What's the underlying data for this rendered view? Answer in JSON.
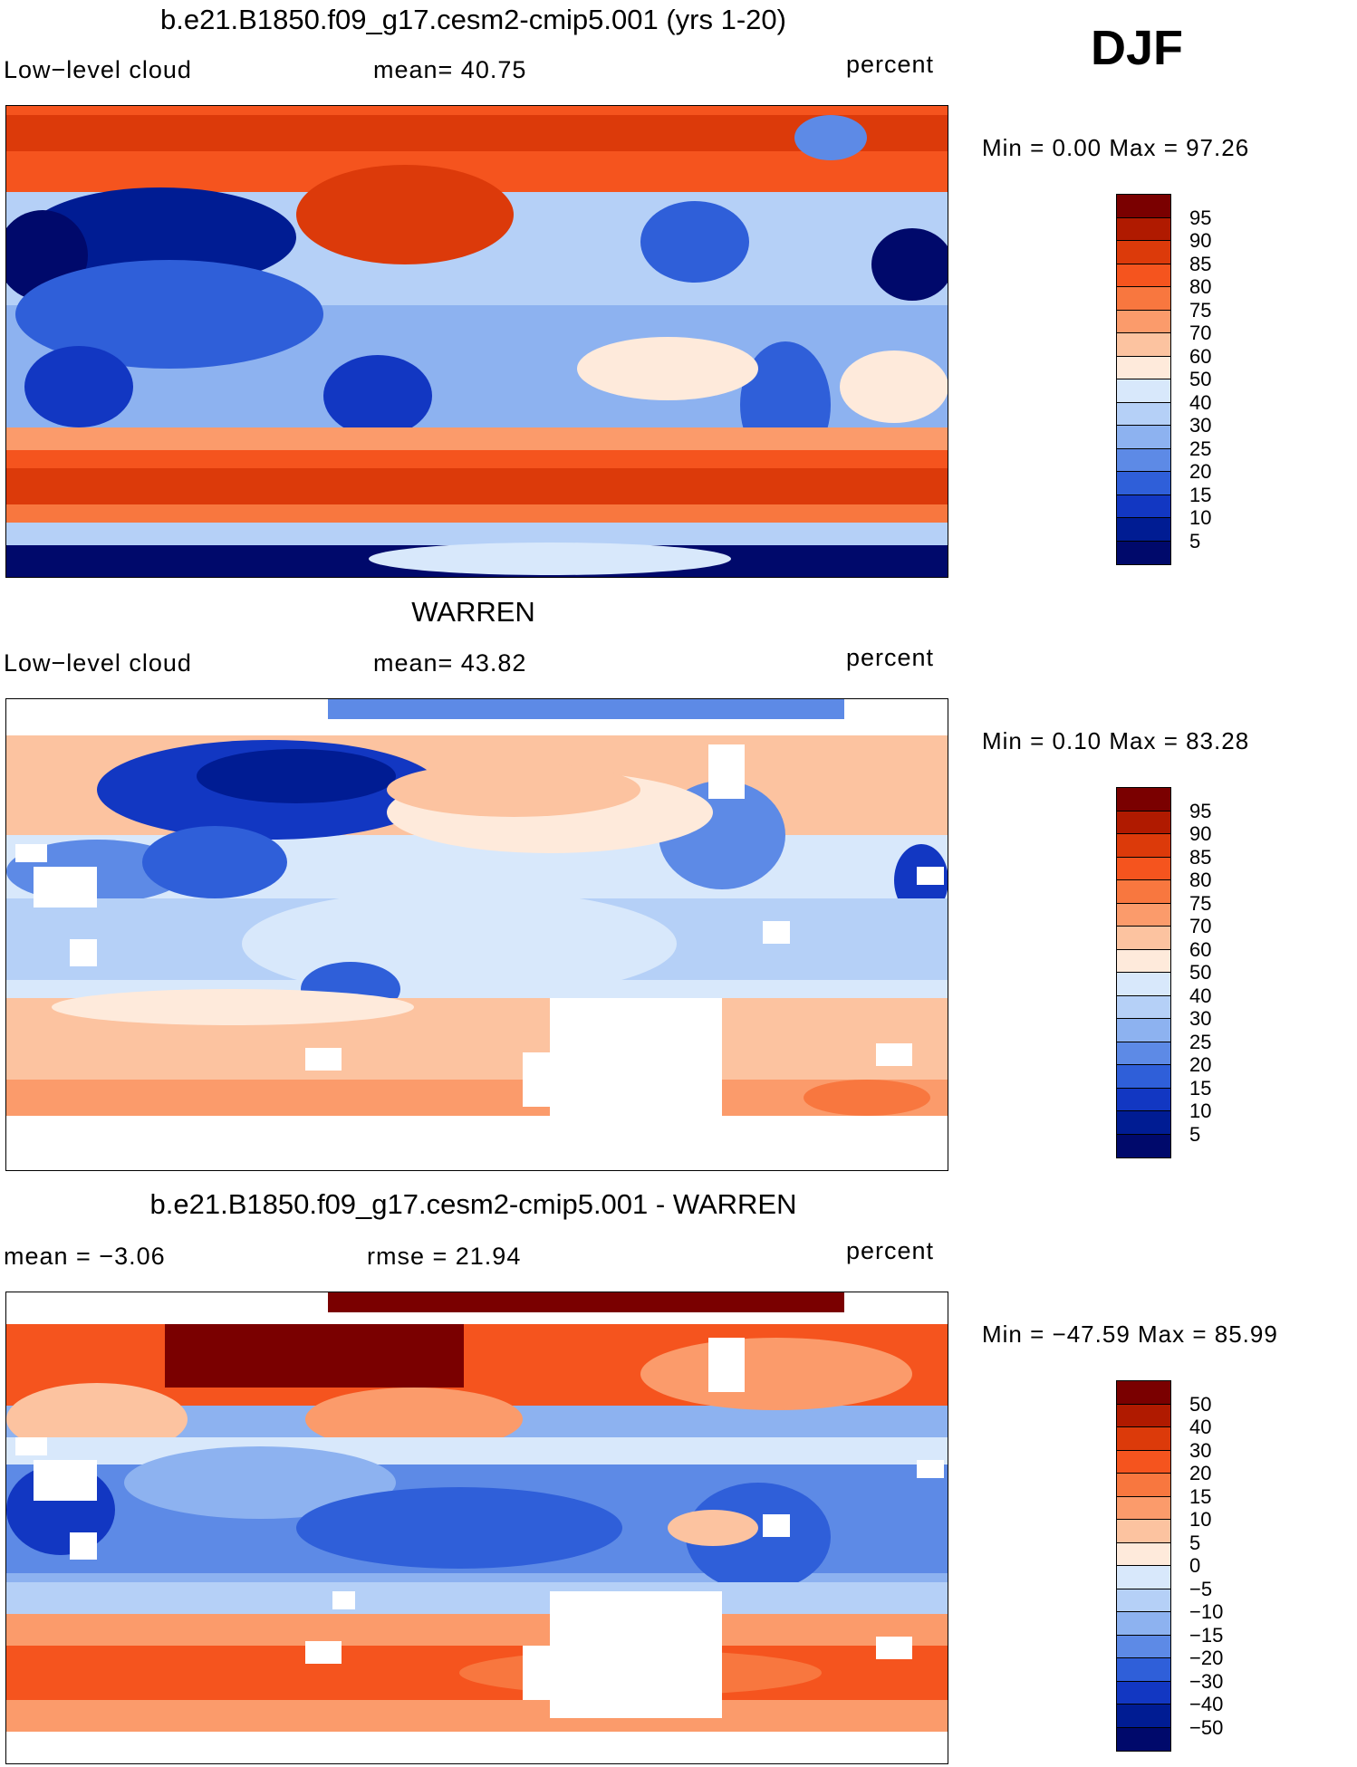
{
  "season": "DJF",
  "panels": [
    {
      "id": "model",
      "title": "b.e21.B1850.f09_g17.cesm2-cmip5.001 (yrs 1-20)",
      "left_label": "Low−level cloud",
      "mid_label": "mean=   40.75",
      "units": "percent",
      "minmax": "Min =     0.00 Max =   97.26"
    },
    {
      "id": "obs",
      "title": "WARREN",
      "left_label": "Low−level cloud",
      "mid_label": "mean=   43.82",
      "units": "percent",
      "minmax": "Min =     0.10 Max =   83.28"
    },
    {
      "id": "diff",
      "title": "b.e21.B1850.f09_g17.cesm2-cmip5.001 - WARREN",
      "left_label": "mean  =   −3.06",
      "mid_label": "rmse  =   21.94",
      "units": "percent",
      "minmax": "Min = −47.59 Max =   85.99"
    }
  ],
  "colorbars": {
    "abs": {
      "labels": [
        "95",
        "90",
        "85",
        "80",
        "75",
        "70",
        "60",
        "50",
        "40",
        "30",
        "25",
        "20",
        "15",
        "10",
        "5"
      ],
      "colors": [
        "#7a0000",
        "#b01a00",
        "#dc3a0a",
        "#f5541e",
        "#f8773f",
        "#fb9b6b",
        "#fcc3a0",
        "#feeadb",
        "#d8e8fb",
        "#b5d0f7",
        "#8db2f0",
        "#5d8ae6",
        "#2f5fd9",
        "#1237c2",
        "#001c93",
        "#00096b"
      ]
    },
    "diff": {
      "labels": [
        "50",
        "40",
        "30",
        "20",
        "15",
        "10",
        "5",
        "0",
        "−5",
        "−10",
        "−15",
        "−20",
        "−30",
        "−40",
        "−50"
      ],
      "colors": [
        "#7a0000",
        "#b01a00",
        "#dc3a0a",
        "#f5541e",
        "#f8773f",
        "#fb9b6b",
        "#fcc3a0",
        "#feeadb",
        "#d8e8fb",
        "#b5d0f7",
        "#8db2f0",
        "#5d8ae6",
        "#2f5fd9",
        "#1237c2",
        "#001c93",
        "#00096b"
      ]
    }
  },
  "chart_data": [
    {
      "type": "heatmap",
      "title": "b.e21.B1850.f09_g17.cesm2-cmip5.001 (yrs 1-20)",
      "variable": "Low−level cloud",
      "units": "percent",
      "season": "DJF",
      "mean": 40.75,
      "min": 0.0,
      "max": 97.26,
      "contour_levels": [
        5,
        10,
        15,
        20,
        25,
        30,
        40,
        50,
        60,
        70,
        75,
        80,
        85,
        90,
        95
      ]
    },
    {
      "type": "heatmap",
      "title": "WARREN",
      "variable": "Low−level cloud",
      "units": "percent",
      "season": "DJF",
      "mean": 43.82,
      "min": 0.1,
      "max": 83.28,
      "contour_levels": [
        5,
        10,
        15,
        20,
        25,
        30,
        40,
        50,
        60,
        70,
        75,
        80,
        85,
        90,
        95
      ]
    },
    {
      "type": "heatmap",
      "title": "b.e21.B1850.f09_g17.cesm2-cmip5.001 - WARREN",
      "units": "percent",
      "season": "DJF",
      "mean": -3.06,
      "rmse": 21.94,
      "min": -47.59,
      "max": 85.99,
      "contour_levels": [
        -50,
        -40,
        -30,
        -20,
        -15,
        -10,
        -5,
        0,
        5,
        10,
        15,
        20,
        30,
        40,
        50
      ]
    }
  ]
}
